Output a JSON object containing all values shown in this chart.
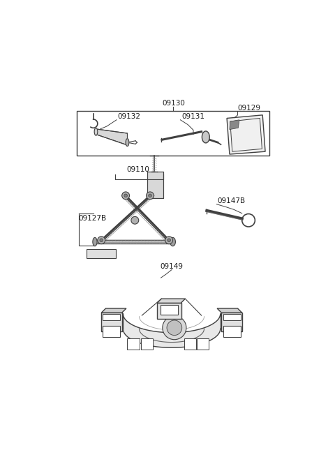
{
  "bg_color": "#ffffff",
  "line_color": "#404040",
  "label_color": "#1a1a1a",
  "fig_width": 4.8,
  "fig_height": 6.55,
  "font_size": 7.5
}
